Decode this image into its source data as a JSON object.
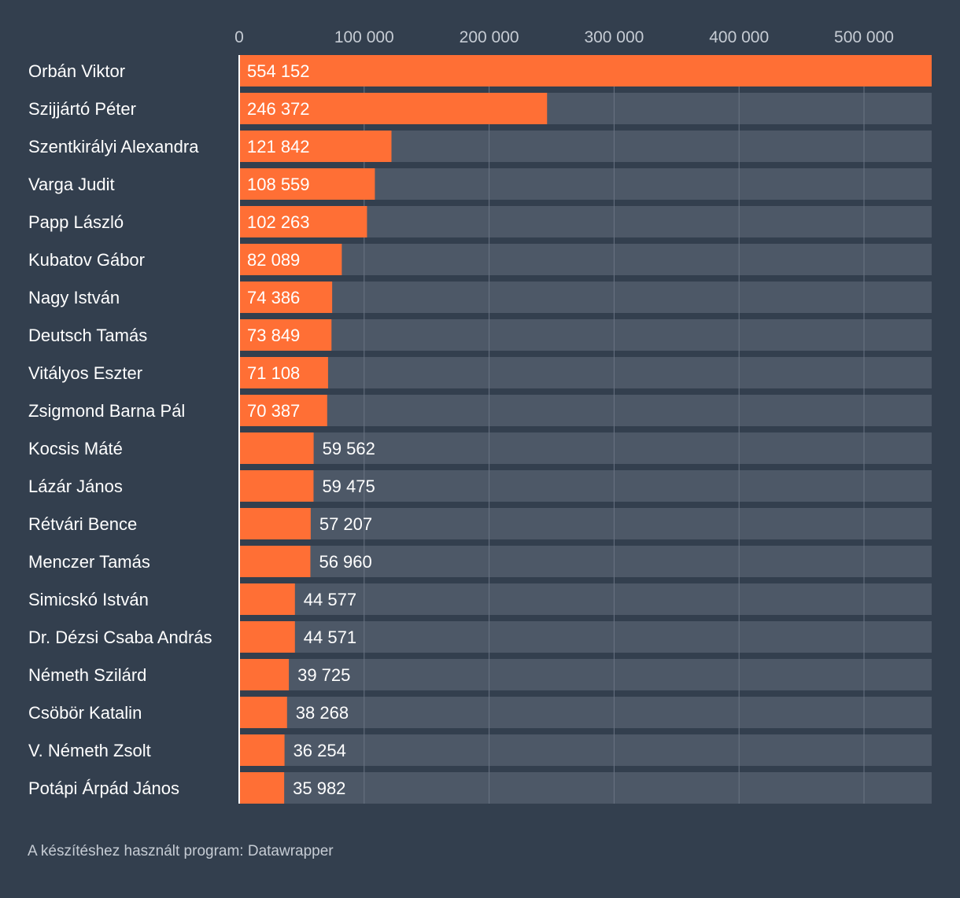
{
  "chart_data": {
    "type": "bar",
    "orientation": "horizontal",
    "title": "",
    "xlabel": "",
    "ylabel": "",
    "xlim": [
      0,
      554152
    ],
    "ticks": [
      0,
      100000,
      200000,
      300000,
      400000,
      500000
    ],
    "tick_labels": [
      "0",
      "100 000",
      "200 000",
      "300 000",
      "400 000",
      "500 000"
    ],
    "grid": true,
    "categories": [
      "Orbán Viktor",
      "Szijjártó Péter",
      "Szentkirályi Alexandra",
      "Varga Judit",
      "Papp László",
      "Kubatov Gábor",
      "Nagy István",
      "Deutsch Tamás",
      "Vitályos Eszter",
      "Zsigmond Barna Pál",
      "Kocsis Máté",
      "Lázár János",
      "Rétvári Bence",
      "Menczer Tamás",
      "Simicskó István",
      "Dr. Dézsi Csaba András",
      "Németh Szilárd",
      "Csöbör Katalin",
      "V. Németh Zsolt",
      "Potápi Árpád János"
    ],
    "values": [
      554152,
      246372,
      121842,
      108559,
      102263,
      82089,
      74386,
      73849,
      71108,
      70387,
      59562,
      59475,
      57207,
      56960,
      44577,
      44571,
      39725,
      38268,
      36254,
      35982
    ],
    "value_labels": [
      "554 152",
      "246 372",
      "121 842",
      "108 559",
      "102 263",
      "82 089",
      "74 386",
      "73 849",
      "71 108",
      "70 387",
      "59 562",
      "59 475",
      "57 207",
      "56 960",
      "44 577",
      "44 571",
      "39 725",
      "38 268",
      "36 254",
      "35 982"
    ]
  },
  "colors": {
    "background": "#333f4e",
    "bar": "#ff6f35",
    "track": "#4d5867",
    "grid": "#6a7483",
    "axis": "#ffffff"
  },
  "footer": {
    "source": "A készítéshez használt program: Datawrapper"
  }
}
